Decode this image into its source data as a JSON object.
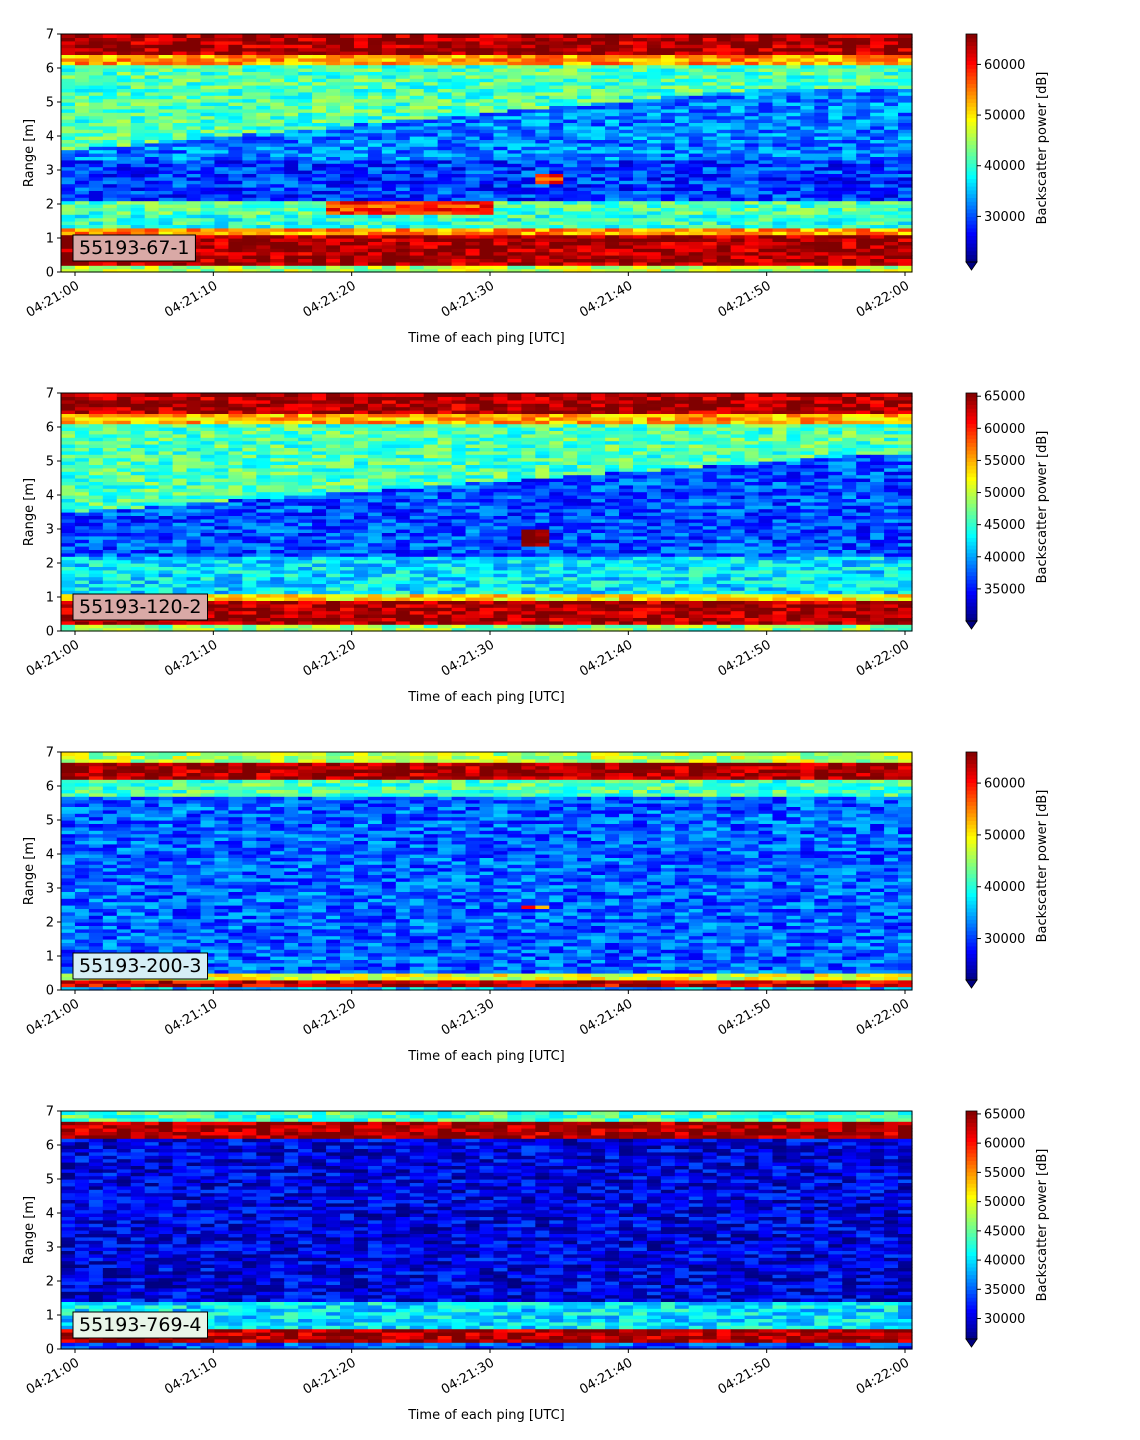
{
  "chart_data": [
    {
      "type": "heatmap",
      "label": "55193-67-1",
      "xlabel": "Time of each ping [UTC]",
      "ylabel": "Range [m]",
      "colorbar_label": "Backscatter power [dB]",
      "colormap": "jet",
      "x_range": [
        "04:20:59",
        "04:22:00"
      ],
      "xticks": [
        "04:21:00",
        "04:21:10",
        "04:21:20",
        "04:21:30",
        "04:21:40",
        "04:21:50",
        "04:22:00"
      ],
      "ylim": [
        0,
        7
      ],
      "yticks": [
        0,
        1,
        2,
        3,
        4,
        5,
        6,
        7
      ],
      "clim": [
        21000,
        66000
      ],
      "cticks": [
        30000,
        40000,
        50000,
        60000
      ],
      "colorbar_extend": "min",
      "label_box_color": "#d9a9a6",
      "features": [
        {
          "range": [
            0.25,
            1.1
          ],
          "value": 64000
        },
        {
          "range": [
            1.1,
            1.3
          ],
          "value": 52000
        },
        {
          "range": [
            1.3,
            1.6
          ],
          "value": 38000
        },
        {
          "range": [
            1.6,
            2.0
          ],
          "value": 36000
        },
        {
          "range": [
            6.5,
            7.0
          ],
          "value": 64000
        },
        {
          "range": [
            6.1,
            6.4
          ],
          "value": 52000
        },
        {
          "range": [
            5.4,
            6.1
          ],
          "value": 42000
        },
        {
          "range": [
            4.3,
            5.4
          ],
          "value": 33000
        }
      ]
    },
    {
      "type": "heatmap",
      "label": "55193-120-2",
      "xlabel": "Time of each ping [UTC]",
      "ylabel": "Range [m]",
      "colorbar_label": "Backscatter power [dB]",
      "colormap": "jet",
      "x_range": [
        "04:20:59",
        "04:22:00"
      ],
      "xticks": [
        "04:21:00",
        "04:21:10",
        "04:21:20",
        "04:21:30",
        "04:21:40",
        "04:21:50",
        "04:22:00"
      ],
      "ylim": [
        0,
        7
      ],
      "yticks": [
        0,
        1,
        2,
        3,
        4,
        5,
        6,
        7
      ],
      "clim": [
        30000,
        65500
      ],
      "cticks": [
        35000,
        40000,
        45000,
        50000,
        55000,
        60000,
        65000
      ],
      "colorbar_extend": "min",
      "label_box_color": "#d9a9a6",
      "features": [
        {
          "range": [
            0.25,
            0.9
          ],
          "value": 64000
        },
        {
          "range": [
            0.9,
            1.15
          ],
          "value": 50000
        },
        {
          "range": [
            6.5,
            7.0
          ],
          "value": 64000
        },
        {
          "range": [
            6.1,
            6.4
          ],
          "value": 54000
        },
        {
          "range": [
            5.3,
            6.1
          ],
          "value": 45000
        }
      ]
    },
    {
      "type": "heatmap",
      "label": "55193-200-3",
      "xlabel": "Time of each ping [UTC]",
      "ylabel": "Range [m]",
      "colorbar_label": "Backscatter power [dB]",
      "colormap": "jet",
      "x_range": [
        "04:20:59",
        "04:22:00"
      ],
      "xticks": [
        "04:21:00",
        "04:21:10",
        "04:21:20",
        "04:21:30",
        "04:21:40",
        "04:21:50",
        "04:22:00"
      ],
      "ylim": [
        0,
        7
      ],
      "yticks": [
        0,
        1,
        2,
        3,
        4,
        5,
        6,
        7
      ],
      "clim": [
        22000,
        66000
      ],
      "cticks": [
        30000,
        40000,
        50000,
        60000
      ],
      "colorbar_extend": "min",
      "label_box_color": "#d5eef5",
      "features": [
        {
          "range": [
            0.1,
            0.3
          ],
          "value": 62000
        },
        {
          "range": [
            0.3,
            0.5
          ],
          "value": 47000
        },
        {
          "range": [
            6.3,
            6.7
          ],
          "value": 64000
        },
        {
          "range": [
            6.7,
            7.0
          ],
          "value": 47000
        },
        {
          "range": [
            5.8,
            6.2
          ],
          "value": 45000
        }
      ]
    },
    {
      "type": "heatmap",
      "label": "55193-769-4",
      "xlabel": "Time of each ping [UTC]",
      "ylabel": "Range [m]",
      "colorbar_label": "Backscatter power [dB]",
      "colormap": "jet",
      "x_range": [
        "04:20:59",
        "04:22:00"
      ],
      "xticks": [
        "04:21:00",
        "04:21:10",
        "04:21:20",
        "04:21:30",
        "04:21:40",
        "04:21:50",
        "04:22:00"
      ],
      "ylim": [
        0,
        7
      ],
      "yticks": [
        0,
        1,
        2,
        3,
        4,
        5,
        6,
        7
      ],
      "clim": [
        26500,
        65500
      ],
      "cticks": [
        30000,
        35000,
        40000,
        45000,
        50000,
        55000,
        60000,
        65000
      ],
      "colorbar_extend": "min",
      "label_box_color": "#e8f5e8",
      "features": [
        {
          "range": [
            0.25,
            0.65
          ],
          "value": 64000
        },
        {
          "range": [
            0.65,
            1.4
          ],
          "value": 37000
        },
        {
          "range": [
            6.3,
            6.7
          ],
          "value": 64000
        },
        {
          "range": [
            6.7,
            7.0
          ],
          "value": 42000
        },
        {
          "range": [
            1.4,
            6.2
          ],
          "value": 29000
        }
      ]
    }
  ]
}
